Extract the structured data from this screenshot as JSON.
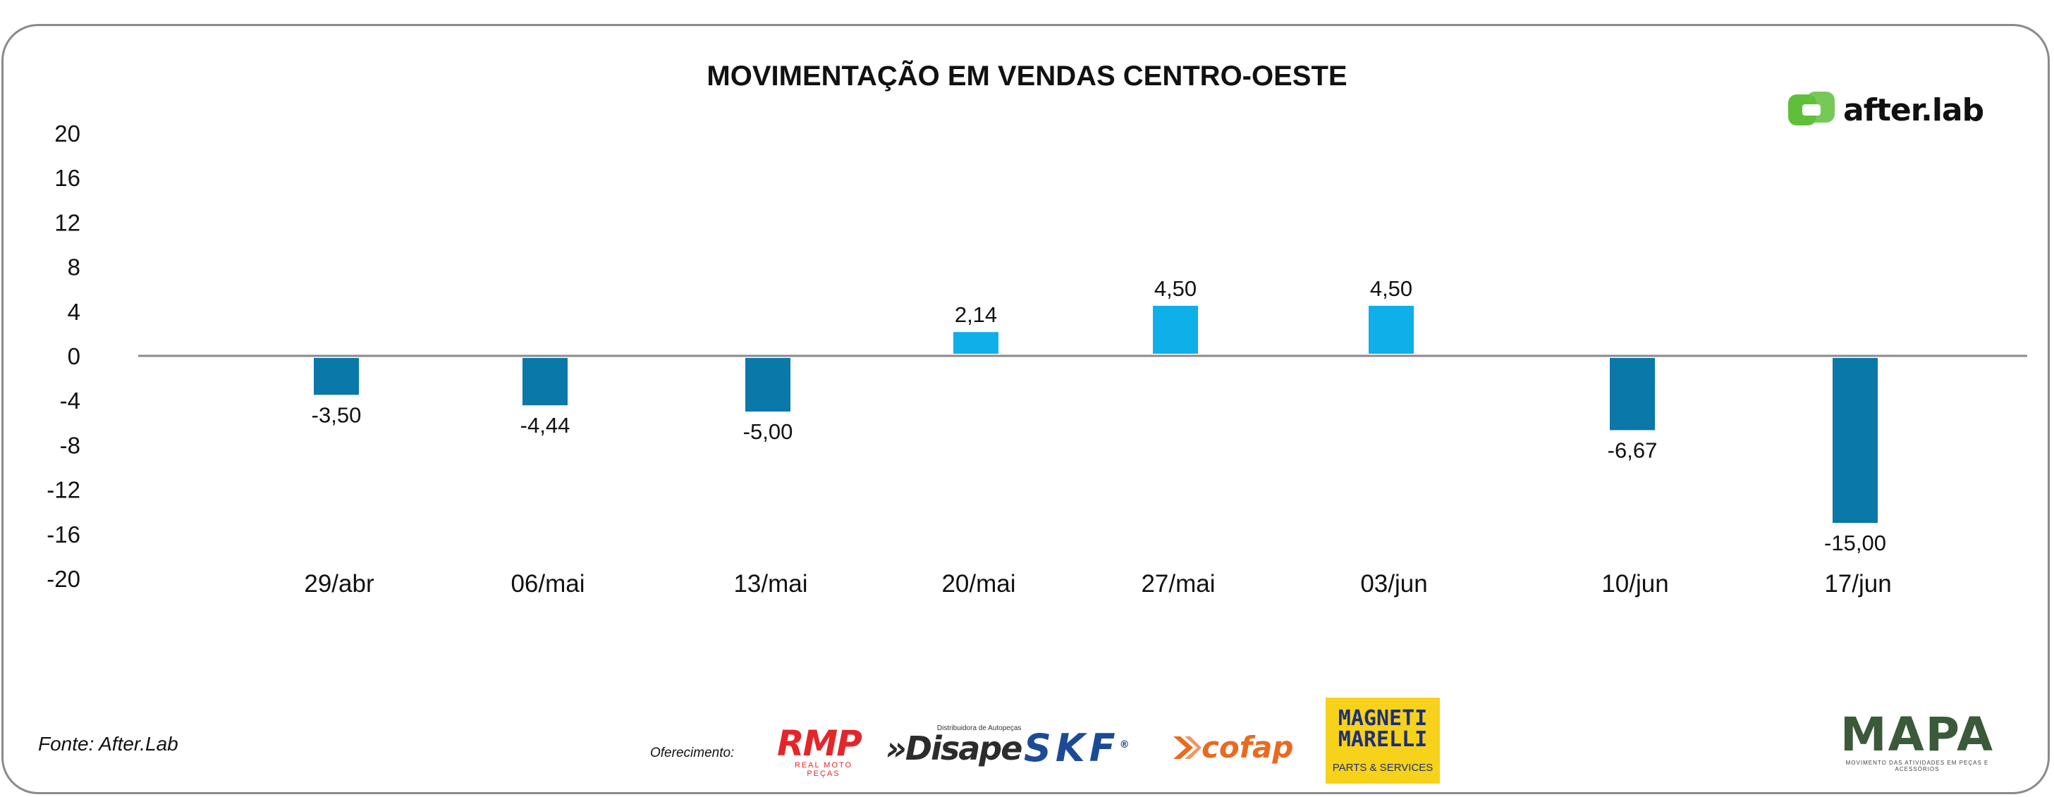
{
  "chart_data": {
    "type": "bar",
    "title": "MOVIMENTAÇÃO EM VENDAS CENTRO-OESTE",
    "xlabel": "",
    "ylabel": "",
    "ylim": [
      -20,
      20
    ],
    "yticks": [
      "20",
      "16",
      "12",
      "8",
      "4",
      "0",
      "-4",
      "-8",
      "-12",
      "-16",
      "-20"
    ],
    "categories": [
      "29/abr",
      "06/mai",
      "13/mai",
      "20/mai",
      "27/mai",
      "03/jun",
      "10/jun",
      "17/jun"
    ],
    "values": [
      -3.5,
      -4.44,
      -5.0,
      2.14,
      4.5,
      4.5,
      -6.67,
      -15.0
    ],
    "value_labels": [
      "-3,50",
      "-4,44",
      "-5,00",
      "2,14",
      "4,50",
      "4,50",
      "-6,67",
      "-15,00"
    ],
    "colors": {
      "positive": "#0fb0ea",
      "negative": "#0a78a8",
      "axis": "#8a8a8a"
    }
  },
  "brand": {
    "name": "after.lab",
    "color": "#5fbf3a"
  },
  "footer": {
    "source": "Fonte: After.Lab",
    "sponsor_label": "Oferecimento:",
    "sponsors": {
      "rmp": {
        "name": "RMP",
        "tagline": "REAL MOTO PEÇAS"
      },
      "disape": {
        "name": "»Disape",
        "tagline": "Distribuidora de Autopeças"
      },
      "skf": {
        "name": "SKF",
        "mark": "®"
      },
      "cofap": {
        "name": "cofap"
      },
      "magneti": {
        "name": "MAGNETI MARELLI",
        "tagline": "PARTS & SERVICES"
      },
      "mapa": {
        "name": "MAPA",
        "tagline": "MOVIMENTO DAS ATIVIDADES EM PEÇAS E ACESSÓRIOS"
      }
    }
  }
}
